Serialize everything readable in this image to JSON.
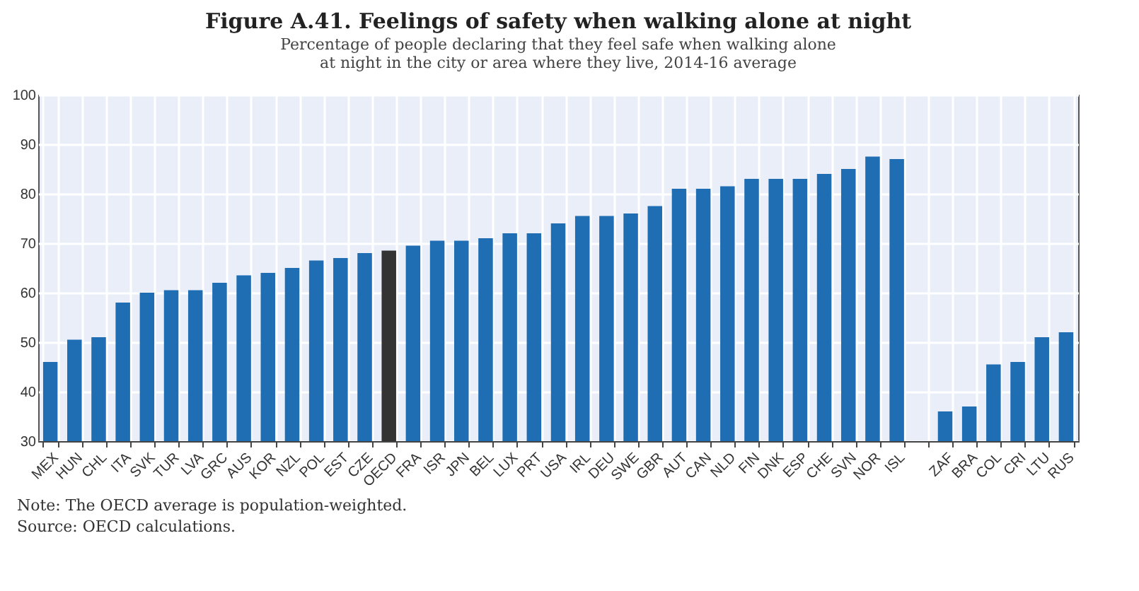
{
  "chart_data": {
    "type": "bar",
    "title": "Figure A.41. Feelings of safety when walking alone at night",
    "subtitle": "Percentage of people declaring that they feel safe when walking alone at night in the city or area where they live, 2014-16 average",
    "categories": [
      "MEX",
      "HUN",
      "CHL",
      "ITA",
      "SVK",
      "TUR",
      "LVA",
      "GRC",
      "AUS",
      "KOR",
      "NZL",
      "POL",
      "EST",
      "CZE",
      "OECD",
      "FRA",
      "ISR",
      "JPN",
      "BEL",
      "LUX",
      "PRT",
      "USA",
      "IRL",
      "DEU",
      "SWE",
      "GBR",
      "AUT",
      "CAN",
      "NLD",
      "FIN",
      "DNK",
      "ESP",
      "CHE",
      "SVN",
      "NOR",
      "ISL",
      null,
      "ZAF",
      "BRA",
      "COL",
      "CRI",
      "LTU",
      "RUS"
    ],
    "values": [
      46,
      50.5,
      51,
      58,
      60,
      60.5,
      60.5,
      62,
      63.5,
      64,
      65,
      66.5,
      67,
      68,
      68.5,
      69.5,
      70.5,
      70.5,
      71,
      72,
      72,
      74,
      75.5,
      75.5,
      76,
      77.5,
      81,
      81,
      81.5,
      83,
      83,
      83,
      84,
      85,
      87.5,
      87,
      null,
      36,
      37,
      45.5,
      46,
      51,
      52
    ],
    "colors": [
      "#1f6db3",
      "#1f6db3",
      "#1f6db3",
      "#1f6db3",
      "#1f6db3",
      "#1f6db3",
      "#1f6db3",
      "#1f6db3",
      "#1f6db3",
      "#1f6db3",
      "#1f6db3",
      "#1f6db3",
      "#1f6db3",
      "#1f6db3",
      "#333333",
      "#1f6db3",
      "#1f6db3",
      "#1f6db3",
      "#1f6db3",
      "#1f6db3",
      "#1f6db3",
      "#1f6db3",
      "#1f6db3",
      "#1f6db3",
      "#1f6db3",
      "#1f6db3",
      "#1f6db3",
      "#1f6db3",
      "#1f6db3",
      "#1f6db3",
      "#1f6db3",
      "#1f6db3",
      "#1f6db3",
      "#1f6db3",
      "#1f6db3",
      "#1f6db3",
      "#1f6db3",
      "#1f6db3",
      "#1f6db3",
      "#1f6db3",
      "#1f6db3",
      "#1f6db3",
      "#1f6db3"
    ],
    "ylim": [
      30,
      100
    ],
    "yticks": [
      30,
      40,
      50,
      60,
      70,
      80,
      90,
      100
    ],
    "grid": true,
    "annotations": [
      "Note: The OECD average is population-weighted.",
      "Source: OECD calculations."
    ]
  }
}
